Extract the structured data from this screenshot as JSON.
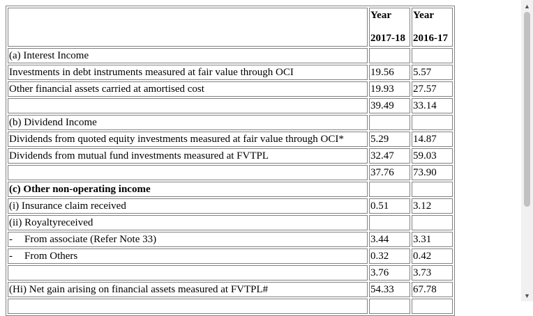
{
  "header": {
    "col1_line1": "Year",
    "col1_line2": "2017-18",
    "col2_line1": "Year",
    "col2_line2": "2016-17"
  },
  "rows": [
    {
      "label": "(a) Interest Income",
      "v1": "",
      "v2": ""
    },
    {
      "label": "Investments in debt instruments measured at fair value through OCI",
      "v1": "19.56",
      "v2": "5.57"
    },
    {
      "label": "Other financial assets carried at amortised cost",
      "v1": "19.93",
      "v2": "27.57"
    },
    {
      "label": "",
      "v1": "39.49",
      "v2": "33.14"
    },
    {
      "label": "(b) Dividend Income",
      "v1": "",
      "v2": ""
    },
    {
      "label": "Dividends from quoted equity investments measured at fair value through OCI*",
      "v1": "5.29",
      "v2": "14.87"
    },
    {
      "label": "Dividends from mutual fund investments measured at FVTPL",
      "v1": "32.47",
      "v2": "59.03"
    },
    {
      "label": "",
      "v1": "37.76",
      "v2": "73.90"
    },
    {
      "label": "(c) Other non-operating income",
      "v1": "",
      "v2": ""
    },
    {
      "label": "(i) Insurance claim received",
      "v1": "0.51",
      "v2": "3.12"
    },
    {
      "label": "(ii) Royaltyreceived",
      "v1": "",
      "v2": ""
    },
    {
      "dash": "-",
      "label": "From associate (Refer Note 33)",
      "v1": "3.44",
      "v2": "3.31"
    },
    {
      "dash": "-",
      "label": "From Others",
      "v1": "0.32",
      "v2": "0.42"
    },
    {
      "label": "",
      "v1": "3.76",
      "v2": "3.73"
    },
    {
      "label": "(Hi) Net gain arising on financial assets measured at FVTPL#",
      "v1": "54.33",
      "v2": "67.78"
    }
  ],
  "scrollbar": {
    "up_icon": "triangle-up",
    "down_icon": "triangle-down"
  }
}
